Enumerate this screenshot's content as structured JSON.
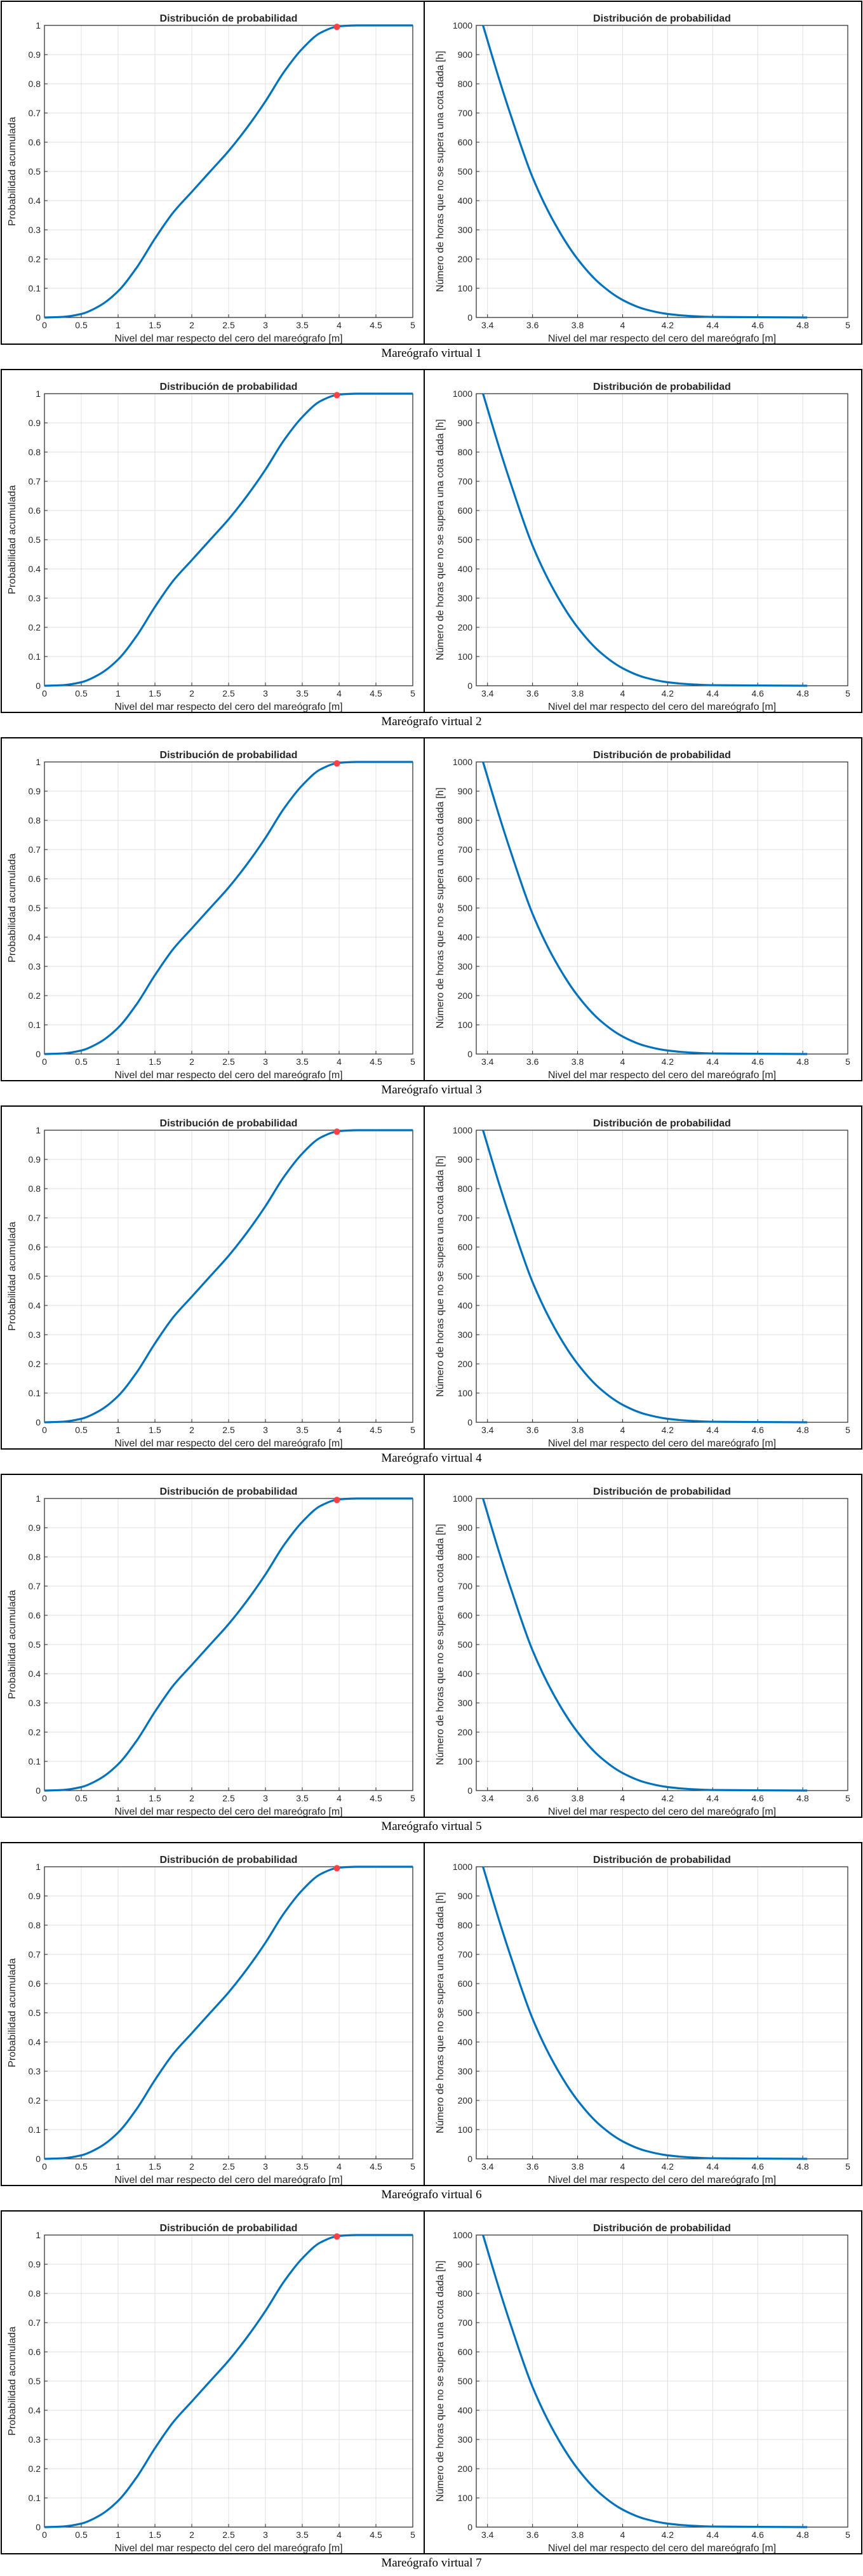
{
  "colors": {
    "line": "#0072bd",
    "marker": "#ff4040",
    "grid": "#dfdfdf",
    "axis": "#262626",
    "panel_border": "#000000"
  },
  "panels": [
    {
      "caption": "Mareógrafo virtual 1"
    },
    {
      "caption": "Mareógrafo virtual 2"
    },
    {
      "caption": "Mareógrafo virtual 3"
    },
    {
      "caption": "Mareógrafo virtual 4"
    },
    {
      "caption": "Mareógrafo virtual 5"
    },
    {
      "caption": "Mareógrafo virtual 6"
    },
    {
      "caption": "Mareógrafo virtual 7"
    }
  ],
  "chart_data": [
    {
      "type": "line",
      "title": "Distribución de probabilidad",
      "xlabel": "Nivel del mar respecto del cero del mareógrafo [m]",
      "ylabel": "Probabilidad acumulada",
      "xlim": [
        0,
        5
      ],
      "ylim": [
        0,
        1
      ],
      "xticks": [
        "0",
        "0.5",
        "1",
        "1.5",
        "2",
        "2.5",
        "3",
        "3.5",
        "4",
        "4.5",
        "5"
      ],
      "yticks": [
        "0",
        "0.1",
        "0.2",
        "0.3",
        "0.4",
        "0.5",
        "0.6",
        "0.7",
        "0.8",
        "0.9",
        "1"
      ],
      "grid": true,
      "x": [
        0,
        0.25,
        0.5,
        0.75,
        1,
        1.25,
        1.5,
        1.75,
        2,
        2.25,
        2.5,
        2.75,
        3,
        3.25,
        3.5,
        3.75,
        4,
        4.25,
        4.5,
        5
      ],
      "y": [
        0,
        0.002,
        0.012,
        0.04,
        0.09,
        0.17,
        0.27,
        0.36,
        0.43,
        0.5,
        0.57,
        0.65,
        0.74,
        0.84,
        0.92,
        0.975,
        0.997,
        1,
        1,
        1
      ],
      "marker": {
        "x": 3.97,
        "y": 0.995
      },
      "repeat_for_panels": 7
    },
    {
      "type": "line",
      "title": "Distribución de probabilidad",
      "xlabel": "Nivel del mar respecto del cero del mareógrafo [m]",
      "ylabel": "Número de horas que no se supera una cota dada [h]",
      "xlim": [
        3.35,
        5
      ],
      "ylim": [
        0,
        1000
      ],
      "xticks": [
        "3.4",
        "3.6",
        "3.8",
        "4",
        "4.2",
        "4.4",
        "4.6",
        "4.8",
        "5"
      ],
      "yticks": [
        "0",
        "100",
        "200",
        "300",
        "400",
        "500",
        "600",
        "700",
        "800",
        "900",
        "1000"
      ],
      "grid": true,
      "x": [
        3.38,
        3.45,
        3.5,
        3.6,
        3.7,
        3.8,
        3.9,
        4.0,
        4.1,
        4.2,
        4.3,
        4.4,
        4.6,
        4.82
      ],
      "y": [
        1000,
        820,
        700,
        480,
        320,
        200,
        115,
        60,
        28,
        12,
        5,
        2,
        1,
        0
      ],
      "repeat_for_panels": 7
    }
  ]
}
